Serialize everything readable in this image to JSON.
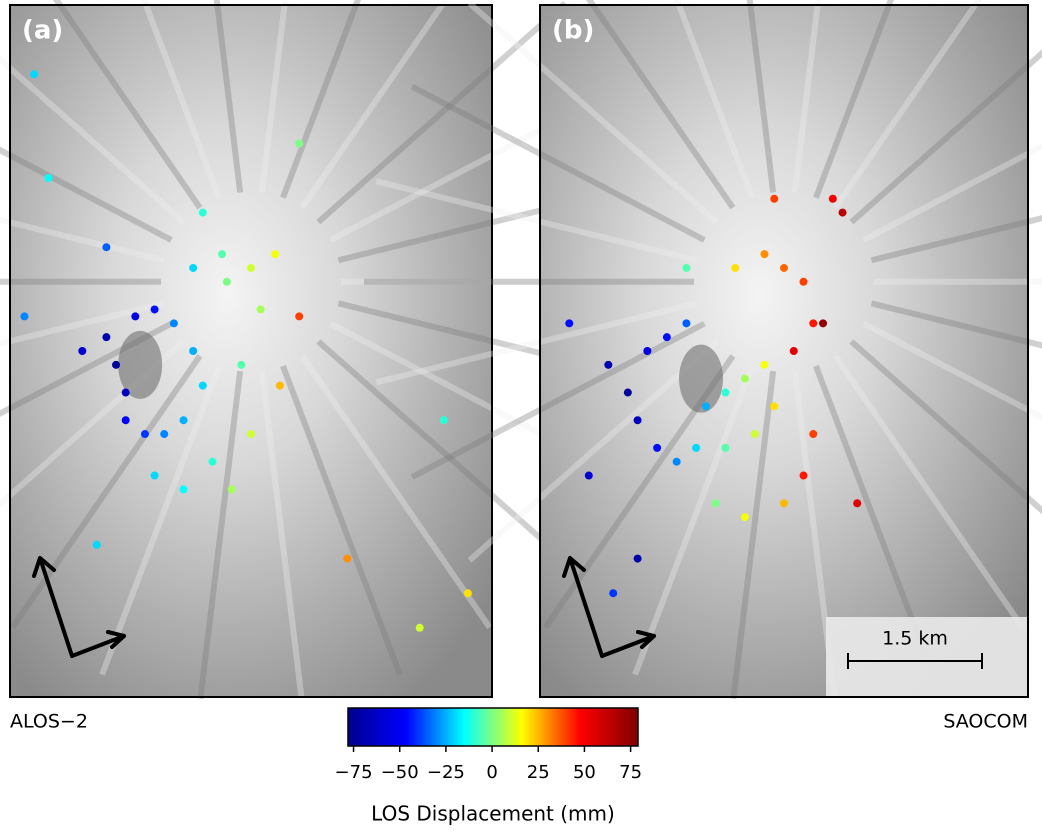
{
  "chart_data": {
    "type": "scatter",
    "colormap": [
      "#00008f",
      "#0000ff",
      "#00ffff",
      "#ffff00",
      "#ff0000",
      "#800000"
    ],
    "clim": [
      -78,
      79
    ],
    "colorbar_ticks": [
      {
        "value": -75,
        "label": "−75"
      },
      {
        "value": -50,
        "label": "−50"
      },
      {
        "value": -25,
        "label": "−25"
      },
      0,
      25,
      50,
      75
    ],
    "colorbar_label": "LOS Displacement (mm)",
    "scale_bar": "1.5 km",
    "panels": [
      {
        "label": "(a)",
        "sensor": "ALOS−2",
        "x": [
          20,
          22,
          24,
          26,
          30,
          34,
          38,
          40,
          36,
          32,
          28,
          24,
          30,
          36,
          42,
          48,
          45,
          50,
          55,
          52,
          44,
          38,
          46,
          50,
          56,
          60,
          5,
          8,
          20,
          60,
          95,
          85,
          70,
          18,
          90,
          3,
          15,
          40
        ],
        "y": [
          48,
          52,
          56,
          45,
          44,
          46,
          50,
          55,
          60,
          62,
          62,
          60,
          68,
          70,
          66,
          52,
          40,
          38,
          36,
          44,
          36,
          38,
          70,
          62,
          55,
          45,
          10,
          25,
          35,
          20,
          85,
          90,
          80,
          78,
          60,
          45,
          50,
          30
        ],
        "values": [
          -70,
          -75,
          -65,
          -55,
          -45,
          -30,
          -25,
          -20,
          -25,
          -30,
          -40,
          -50,
          -20,
          -15,
          -10,
          -5,
          0,
          10,
          15,
          5,
          -5,
          -20,
          5,
          10,
          25,
          40,
          -20,
          -15,
          -35,
          0,
          20,
          10,
          30,
          -20,
          -10,
          -30,
          -60,
          -10
        ]
      },
      {
        "label": "(b)",
        "sensor": "SAOCOM",
        "x": [
          14,
          18,
          20,
          22,
          26,
          30,
          34,
          38,
          42,
          46,
          48,
          44,
          38,
          32,
          28,
          24,
          36,
          42,
          50,
          54,
          56,
          40,
          46,
          50,
          54,
          56,
          52,
          58,
          60,
          48,
          30,
          6,
          10,
          15,
          20,
          62,
          65
        ],
        "y": [
          52,
          56,
          60,
          50,
          48,
          46,
          58,
          56,
          54,
          52,
          58,
          62,
          64,
          64,
          66,
          64,
          72,
          74,
          72,
          68,
          62,
          38,
          36,
          38,
          40,
          46,
          50,
          46,
          28,
          28,
          38,
          46,
          68,
          85,
          80,
          30,
          72
        ],
        "values": [
          -70,
          -75,
          -65,
          -55,
          -45,
          -35,
          -25,
          -10,
          5,
          15,
          20,
          10,
          -5,
          -20,
          -30,
          -45,
          0,
          15,
          25,
          45,
          40,
          20,
          30,
          35,
          40,
          45,
          55,
          75,
          50,
          40,
          -5,
          -45,
          -60,
          -40,
          -70,
          65,
          55
        ]
      }
    ]
  }
}
